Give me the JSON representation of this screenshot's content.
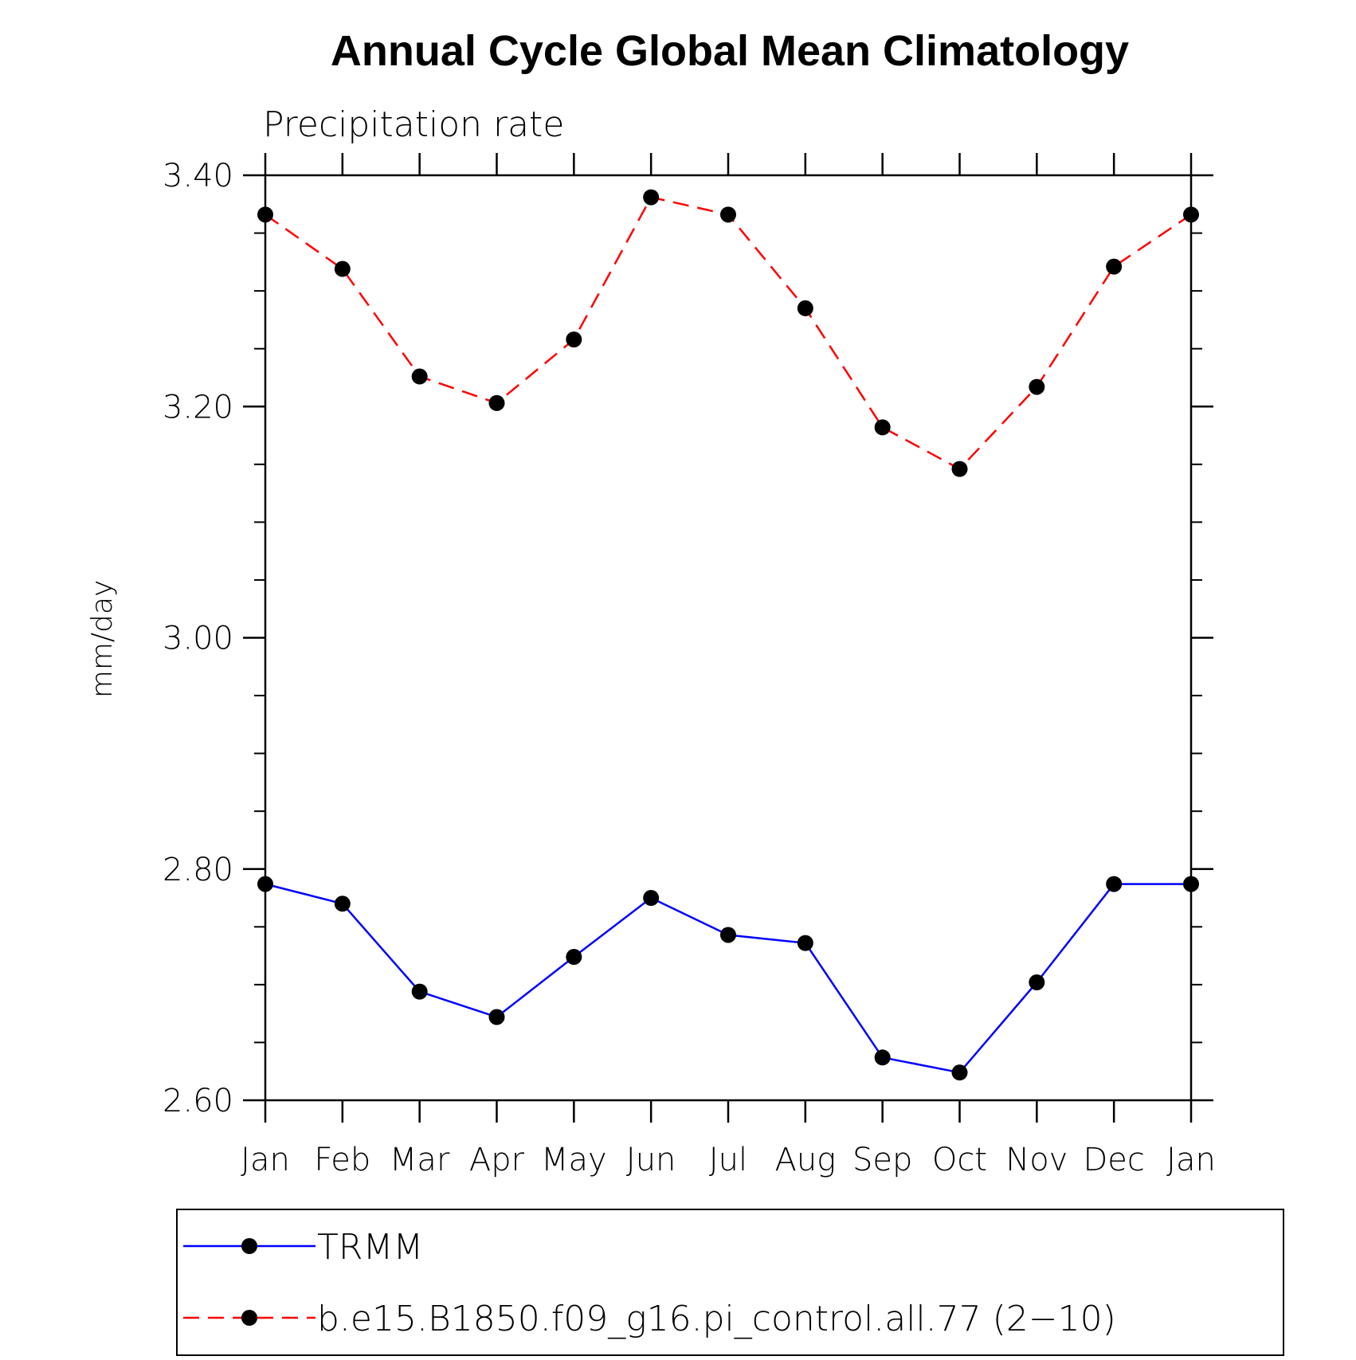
{
  "chart_data": {
    "type": "line",
    "title": "Annual Cycle Global Mean Climatology",
    "subtitle": "Precipitation rate",
    "xlabel": "",
    "ylabel": "mm/day",
    "categories": [
      "Jan",
      "Feb",
      "Mar",
      "Apr",
      "May",
      "Jun",
      "Jul",
      "Aug",
      "Sep",
      "Oct",
      "Nov",
      "Dec",
      "Jan"
    ],
    "ylim": [
      2.6,
      3.4
    ],
    "yticks": [
      2.6,
      2.8,
      3.0,
      3.2,
      3.4
    ],
    "ytick_labels": [
      "2.60",
      "2.80",
      "3.00",
      "3.20",
      "3.40"
    ],
    "grid": false,
    "legend_position": "bottom",
    "series": [
      {
        "name": "TRMM",
        "color": "#0000ff",
        "line_style": "solid",
        "marker": "filled-circle",
        "values": [
          2.787,
          2.77,
          2.694,
          2.672,
          2.724,
          2.775,
          2.743,
          2.736,
          2.637,
          2.624,
          2.702,
          2.787,
          2.787
        ]
      },
      {
        "name": "b.e15.B1850.f09_g16.pi_control.all.77 (2−10)",
        "color": "#ff0000",
        "line_style": "dashed",
        "marker": "filled-circle",
        "values": [
          3.366,
          3.319,
          3.226,
          3.203,
          3.258,
          3.381,
          3.366,
          3.285,
          3.182,
          3.146,
          3.217,
          3.321,
          3.366
        ]
      }
    ]
  }
}
